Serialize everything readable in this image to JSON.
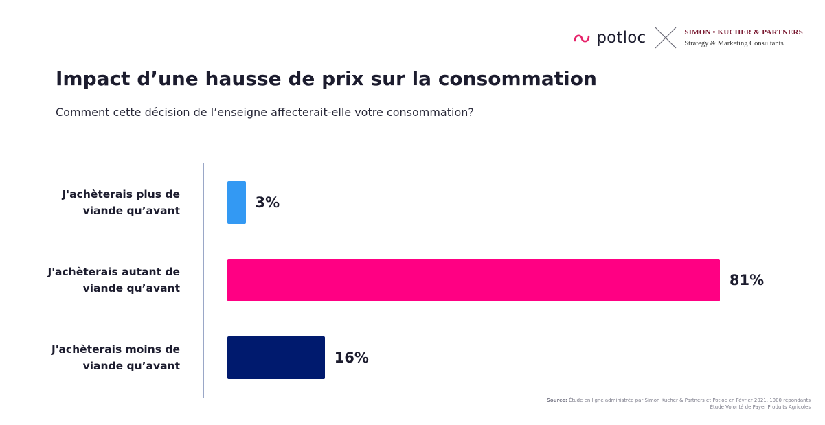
{
  "logos": {
    "potloc": "potloc",
    "partner_line1": "SIMON • KUCHER & PARTNERS",
    "partner_line2": "Strategy & Marketing Consultants"
  },
  "title": "Impact d’une hausse de prix sur la consommation",
  "subtitle": "Comment cette décision de l’enseigne affecterait-elle votre consommation?",
  "chart_data": {
    "type": "bar",
    "orientation": "horizontal",
    "title": "Impact d’une hausse de prix sur la consommation",
    "categories": [
      [
        "J'achèterais plus de",
        "viande qu’avant"
      ],
      [
        "J'achèterais autant de",
        "viande qu’avant"
      ],
      [
        "J'achèterais moins de",
        "viande qu’avant"
      ]
    ],
    "values": [
      3,
      81,
      16
    ],
    "value_labels": [
      "3%",
      "81%",
      "16%"
    ],
    "colors": [
      "#3399f3",
      "#ff0083",
      "#001a6e"
    ],
    "xlim": [
      0,
      100
    ],
    "grid": false,
    "legend": "none"
  },
  "source": {
    "label": "Source:",
    "line1": " Étude en ligne administrée par Simon Kucher & Partners et Potloc en Février 2021, 1000 répondants",
    "line2": "Étude Volonté de Payer Produits Agricoles"
  },
  "icons": {
    "potloc_logo": "potloc-logo-icon",
    "separator": "cross-separator-icon"
  }
}
